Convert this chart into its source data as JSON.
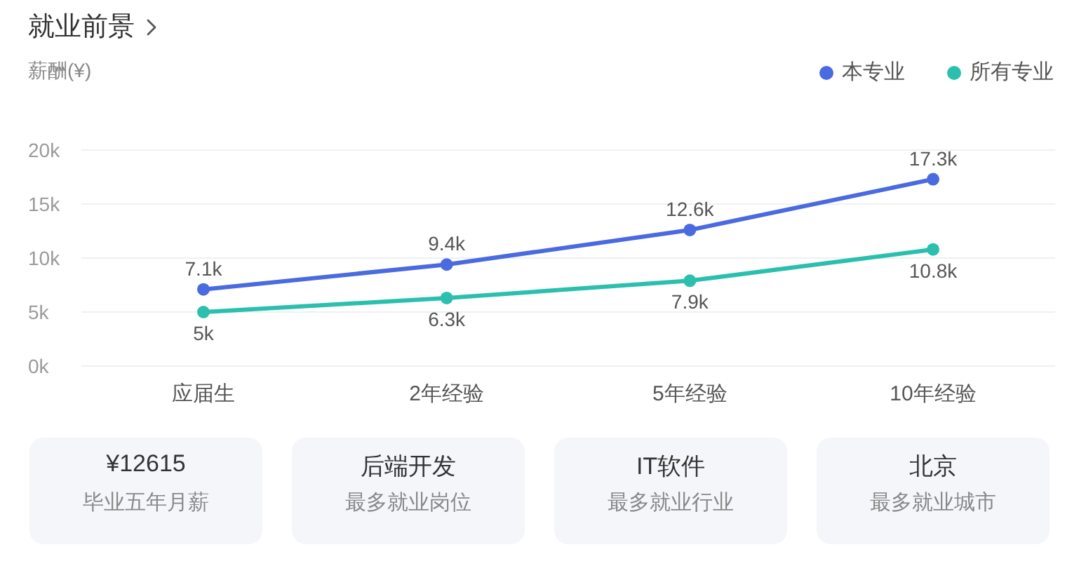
{
  "chart_data": [
    {
      "type": "line",
      "title": "就业前景",
      "ylabel": "薪酬(¥)",
      "categories": [
        "应届生",
        "2年经验",
        "5年经验",
        "10年经验"
      ],
      "series": [
        {
          "name": "本专业",
          "color": "#4a6ae0",
          "values": [
            7100,
            9400,
            12600,
            17300
          ],
          "value_labels": [
            "7.1k",
            "9.4k",
            "12.6k",
            "17.3k"
          ]
        },
        {
          "name": "所有专业",
          "color": "#2bbfae",
          "values": [
            5000,
            6300,
            7900,
            10800
          ],
          "value_labels": [
            "5k",
            "6.3k",
            "7.9k",
            "10.8k"
          ]
        }
      ],
      "ylim": [
        0,
        20000
      ],
      "yticks": [
        {
          "value": 0,
          "label": "0k"
        },
        {
          "value": 5000,
          "label": "5k"
        },
        {
          "value": 10000,
          "label": "10k"
        },
        {
          "value": 15000,
          "label": "15k"
        },
        {
          "value": 20000,
          "label": "20k"
        }
      ],
      "grid": "y",
      "legend": "top right",
      "marker": "circle",
      "line_style": "solid"
    },
    {
      "type": "other",
      "annotations": [
        "¥12615",
        "毕业五年月薪",
        "后端开发",
        "最多就业岗位",
        "IT软件",
        "最多就业行业",
        "北京",
        "最多就业城市"
      ]
    }
  ]
}
